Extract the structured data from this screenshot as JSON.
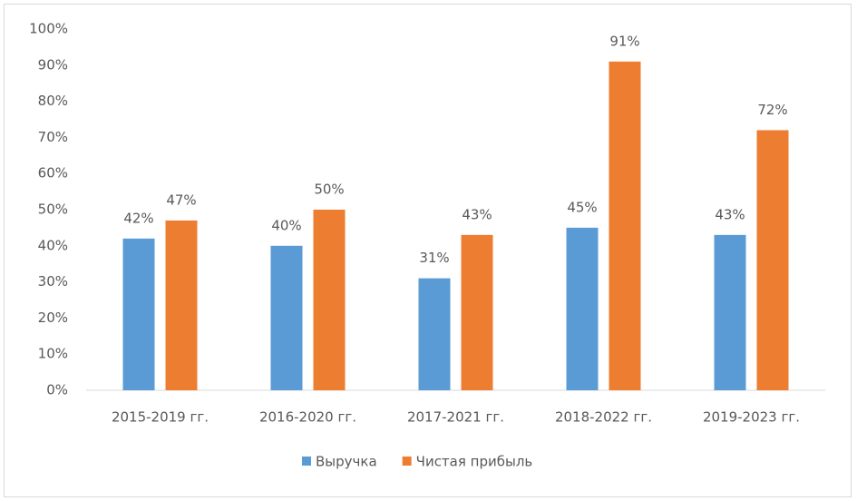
{
  "chart_data": {
    "type": "bar",
    "categories": [
      "2015-2019 гг.",
      "2016-2020 гг.",
      "2017-2021 гг.",
      "2018-2022 гг.",
      "2019-2023 гг."
    ],
    "series": [
      {
        "name": "Выручка",
        "color": "#5b9bd5",
        "values": [
          42,
          40,
          31,
          45,
          43
        ],
        "value_labels": [
          "42%",
          "40%",
          "31%",
          "45%",
          "43%"
        ]
      },
      {
        "name": "Чистая прибыль",
        "color": "#ed7d31",
        "values": [
          47,
          50,
          43,
          91,
          72
        ],
        "value_labels": [
          "47%",
          "50%",
          "43%",
          "91%",
          "72%"
        ]
      }
    ],
    "ylim": [
      0,
      100
    ],
    "yticks": [
      {
        "value": 0,
        "label": "0%"
      },
      {
        "value": 10,
        "label": "10%"
      },
      {
        "value": 20,
        "label": "20%"
      },
      {
        "value": 30,
        "label": "30%"
      },
      {
        "value": 40,
        "label": "40%"
      },
      {
        "value": 50,
        "label": "50%"
      },
      {
        "value": 60,
        "label": "60%"
      },
      {
        "value": 70,
        "label": "70%"
      },
      {
        "value": 80,
        "label": "80%"
      },
      {
        "value": 90,
        "label": "90%"
      },
      {
        "value": 100,
        "label": "100%"
      }
    ],
    "grid": false,
    "legend": "bottom"
  }
}
